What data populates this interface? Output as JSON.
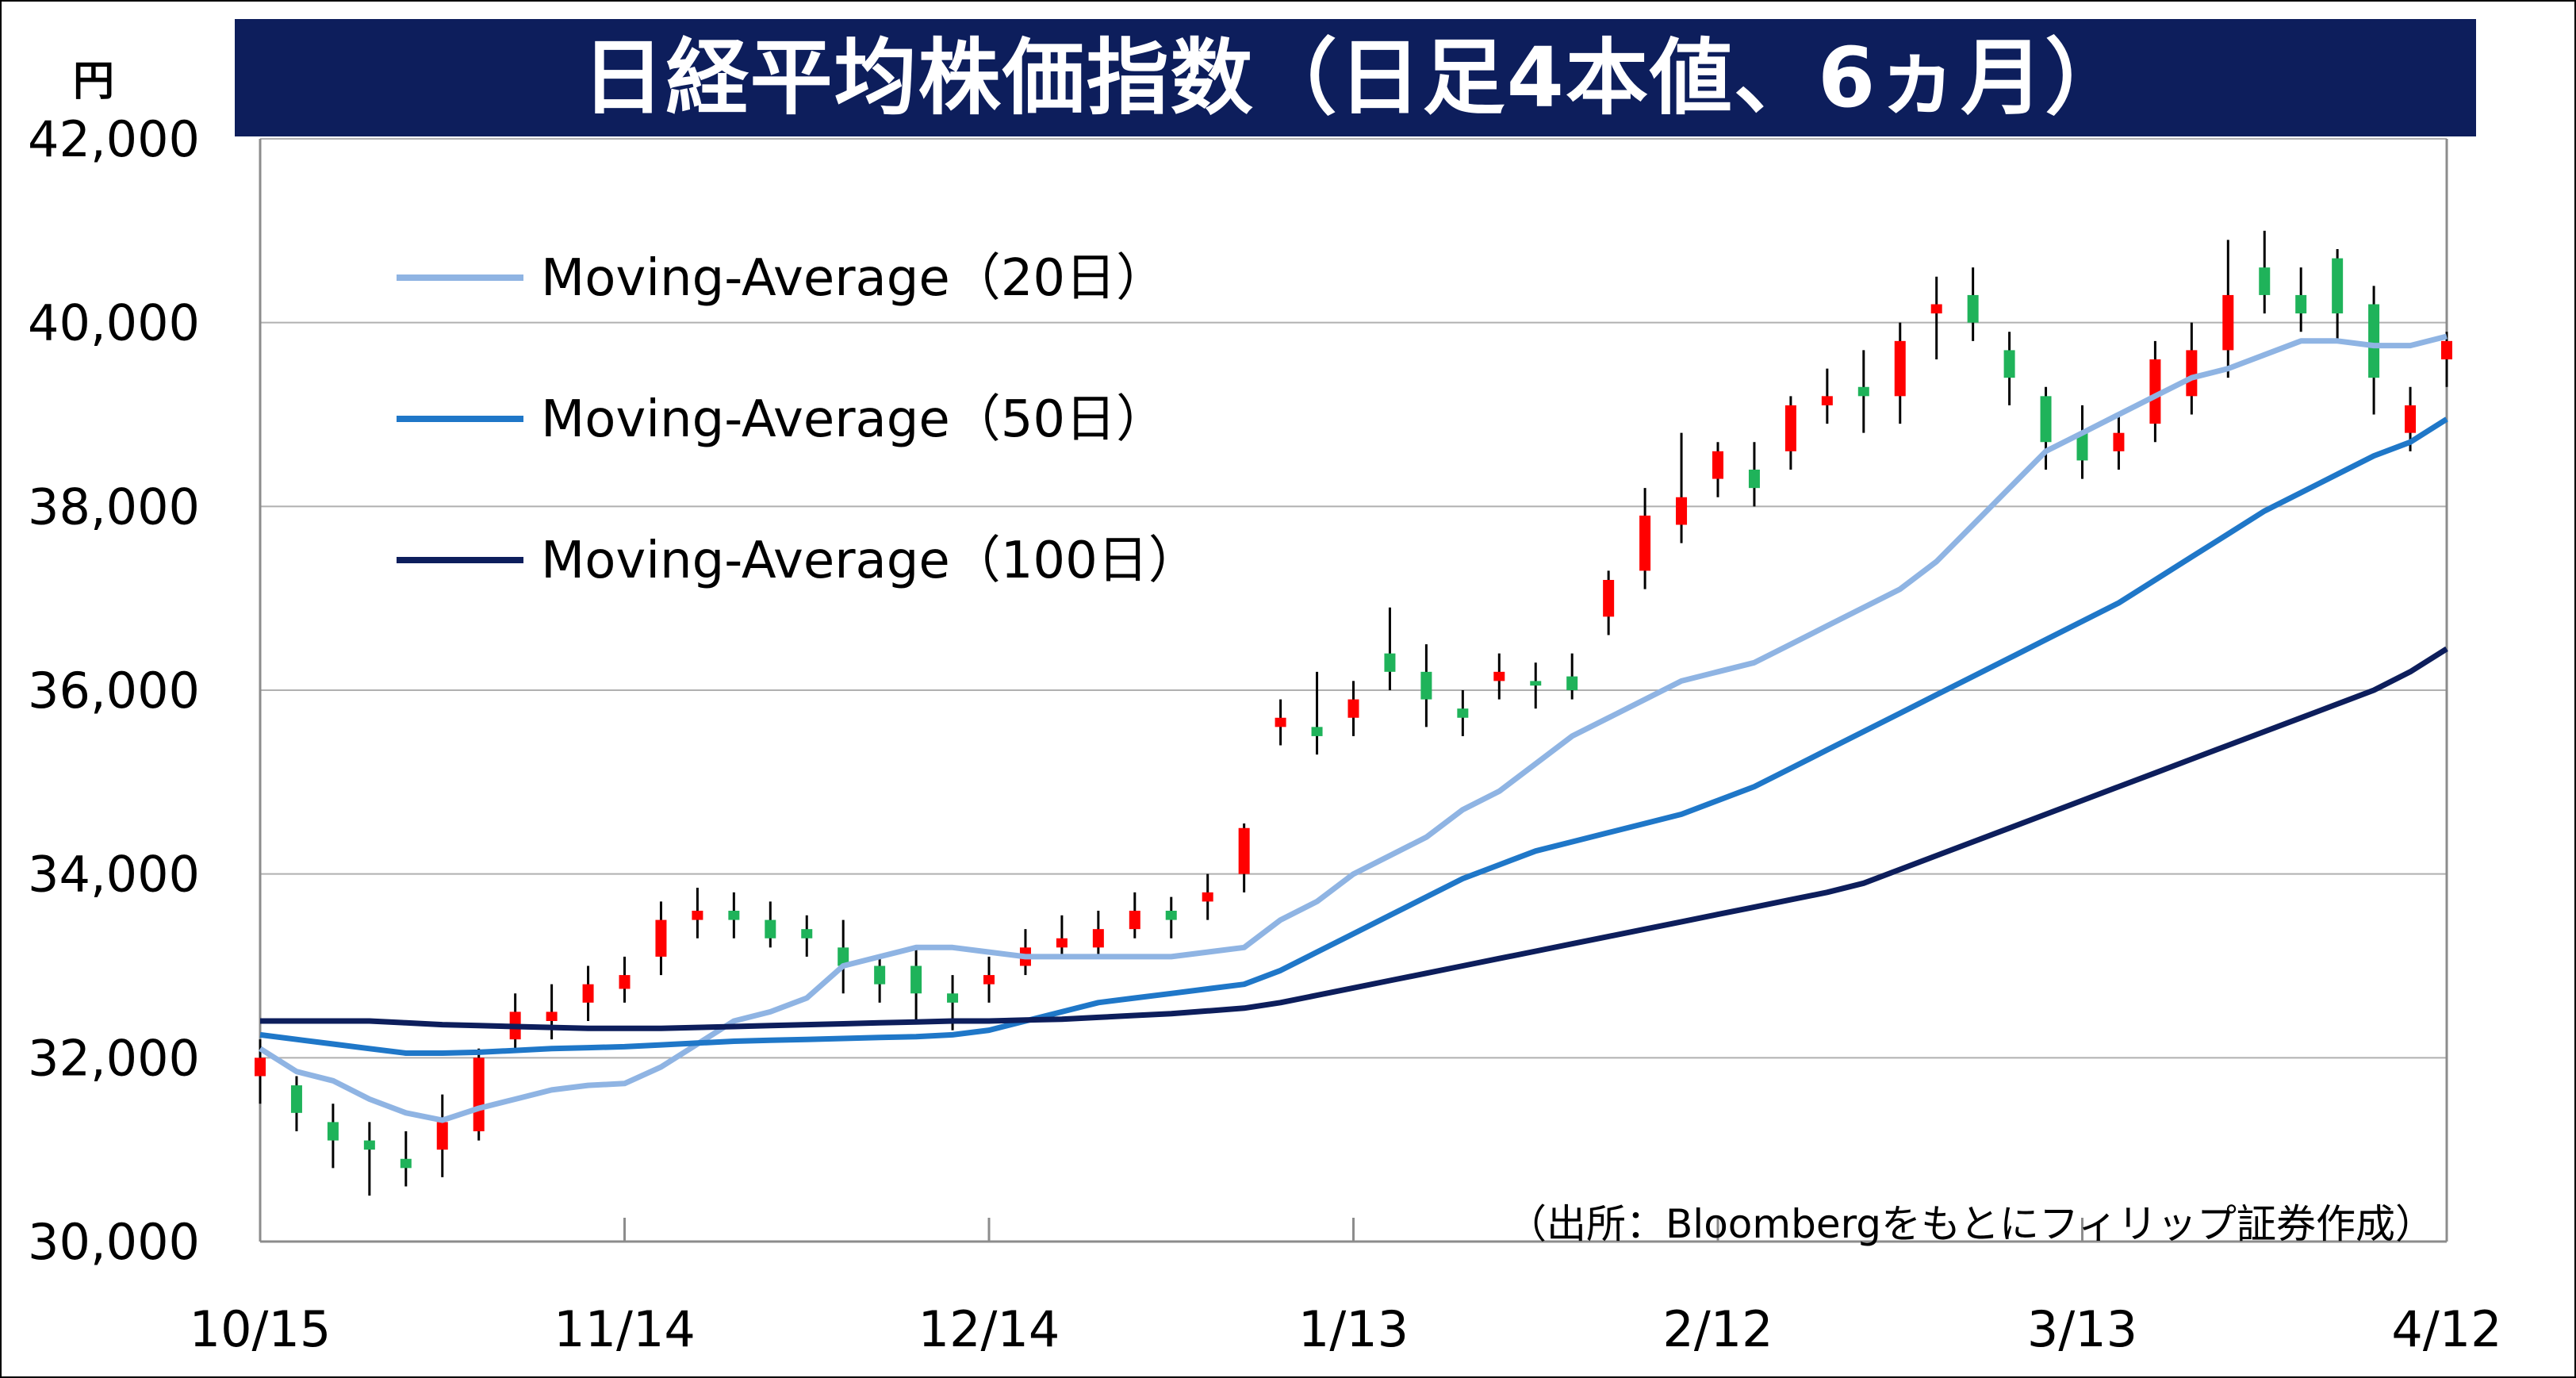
{
  "title": "日経平均株価指数（日足4本値、6ヵ月）",
  "unit": "円",
  "source_note": "（出所：Bloombergをもとにフィリップ証券作成）",
  "colors": {
    "title_bg": "#0d1e5c",
    "up_candle": "#ff0000",
    "down_candle": "#1fb35a",
    "ma20": "#8fb4e3",
    "ma50": "#1f77c8",
    "ma100": "#0d1e5c",
    "grid": "#b0b0b0"
  },
  "chart_data": {
    "type": "line",
    "subtype": "candlestick-with-moving-averages",
    "title": "日経平均株価指数（日足4本値、6ヵ月）",
    "ylabel": "円",
    "ylim": [
      30000,
      42000
    ],
    "yticks": [
      30000,
      32000,
      34000,
      36000,
      38000,
      40000,
      42000
    ],
    "ytick_labels": [
      "30,000",
      "32,000",
      "34,000",
      "36,000",
      "38,000",
      "40,000",
      "42,000"
    ],
    "xlim": [
      0,
      180
    ],
    "x_unit": "days since 10/15",
    "xticks": [
      0,
      30,
      60,
      90,
      120,
      150,
      180
    ],
    "xtick_labels": [
      "10/15",
      "11/14",
      "12/14",
      "1/13",
      "2/12",
      "3/13",
      "4/12"
    ],
    "grid": true,
    "legend_position": "top-left",
    "series": [
      {
        "name": "Moving-Average（20日）",
        "color": "#8fb4e3",
        "x": [
          0,
          3,
          6,
          9,
          12,
          15,
          18,
          21,
          24,
          27,
          30,
          33,
          36,
          39,
          42,
          45,
          48,
          51,
          54,
          57,
          60,
          63,
          66,
          69,
          72,
          75,
          78,
          81,
          84,
          87,
          90,
          93,
          96,
          99,
          102,
          105,
          108,
          111,
          114,
          117,
          120,
          123,
          126,
          129,
          132,
          135,
          138,
          141,
          144,
          147,
          150,
          153,
          156,
          159,
          162,
          165,
          168,
          171,
          174,
          177,
          180
        ],
        "values": [
          32100,
          31850,
          31750,
          31550,
          31400,
          31320,
          31450,
          31550,
          31650,
          31700,
          31720,
          31900,
          32150,
          32400,
          32500,
          32650,
          33000,
          33100,
          33200,
          33200,
          33150,
          33100,
          33100,
          33100,
          33100,
          33100,
          33150,
          33200,
          33500,
          33700,
          34000,
          34200,
          34400,
          34700,
          34900,
          35200,
          35500,
          35700,
          35900,
          36100,
          36200,
          36300,
          36500,
          36700,
          36900,
          37100,
          37400,
          37800,
          38200,
          38600,
          38800,
          39000,
          39200,
          39400,
          39500,
          39650,
          39800,
          39800,
          39750,
          39750,
          39850
        ]
      },
      {
        "name": "Moving-Average（50日）",
        "color": "#1f77c8",
        "x": [
          0,
          3,
          6,
          9,
          12,
          15,
          18,
          21,
          24,
          27,
          30,
          33,
          36,
          39,
          42,
          45,
          48,
          51,
          54,
          57,
          60,
          63,
          66,
          69,
          72,
          75,
          78,
          81,
          84,
          87,
          90,
          93,
          96,
          99,
          102,
          105,
          108,
          111,
          114,
          117,
          120,
          123,
          126,
          129,
          132,
          135,
          138,
          141,
          144,
          147,
          150,
          153,
          156,
          159,
          162,
          165,
          168,
          171,
          174,
          177,
          180
        ],
        "values": [
          32250,
          32200,
          32150,
          32100,
          32050,
          32050,
          32060,
          32080,
          32100,
          32110,
          32120,
          32140,
          32160,
          32180,
          32190,
          32200,
          32210,
          32220,
          32230,
          32250,
          32300,
          32400,
          32500,
          32600,
          32650,
          32700,
          32750,
          32800,
          32950,
          33150,
          33350,
          33550,
          33750,
          33950,
          34100,
          34250,
          34350,
          34450,
          34550,
          34650,
          34800,
          34950,
          35150,
          35350,
          35550,
          35750,
          35950,
          36150,
          36350,
          36550,
          36750,
          36950,
          37200,
          37450,
          37700,
          37950,
          38150,
          38350,
          38550,
          38700,
          38950
        ]
      },
      {
        "name": "Moving-Average（100日）",
        "color": "#0d1e5c",
        "x": [
          0,
          3,
          6,
          9,
          12,
          15,
          18,
          21,
          24,
          27,
          30,
          33,
          36,
          39,
          42,
          45,
          48,
          51,
          54,
          57,
          60,
          63,
          66,
          69,
          72,
          75,
          78,
          81,
          84,
          87,
          90,
          93,
          96,
          99,
          102,
          105,
          108,
          111,
          114,
          117,
          120,
          123,
          126,
          129,
          132,
          135,
          138,
          141,
          144,
          147,
          150,
          153,
          156,
          159,
          162,
          165,
          168,
          171,
          174,
          177,
          180
        ],
        "values": [
          32400,
          32400,
          32400,
          32400,
          32380,
          32360,
          32350,
          32340,
          32330,
          32320,
          32320,
          32320,
          32330,
          32340,
          32350,
          32360,
          32370,
          32380,
          32390,
          32400,
          32400,
          32410,
          32420,
          32440,
          32460,
          32480,
          32510,
          32540,
          32600,
          32680,
          32760,
          32840,
          32920,
          33000,
          33080,
          33160,
          33240,
          33320,
          33400,
          33480,
          33560,
          33640,
          33720,
          33800,
          33900,
          34050,
          34200,
          34350,
          34500,
          34650,
          34800,
          34950,
          35100,
          35250,
          35400,
          35550,
          35700,
          35850,
          36000,
          36200,
          36450
        ]
      }
    ],
    "candles": {
      "x": [
        0,
        3,
        6,
        9,
        12,
        15,
        18,
        21,
        24,
        27,
        30,
        33,
        36,
        39,
        42,
        45,
        48,
        51,
        54,
        57,
        60,
        63,
        66,
        69,
        72,
        75,
        78,
        81,
        84,
        87,
        90,
        93,
        96,
        99,
        102,
        105,
        108,
        111,
        114,
        117,
        120,
        123,
        126,
        129,
        132,
        135,
        138,
        141,
        144,
        147,
        150,
        153,
        156,
        159,
        162,
        165,
        168,
        171,
        174,
        177,
        180
      ],
      "open": [
        31800,
        31700,
        31300,
        31100,
        30900,
        31000,
        31200,
        32200,
        32400,
        32600,
        32750,
        33100,
        33500,
        33600,
        33500,
        33400,
        33200,
        33000,
        33000,
        32700,
        32800,
        33000,
        33200,
        33200,
        33400,
        33600,
        33700,
        34000,
        35600,
        35600,
        35700,
        36400,
        36200,
        35800,
        36100,
        36100,
        36150,
        36800,
        37300,
        37800,
        38300,
        38400,
        38600,
        39100,
        39300,
        39200,
        40100,
        40300,
        39700,
        39200,
        38800,
        38600,
        38900,
        39200,
        39700,
        40600,
        40300,
        40700,
        40200,
        38800,
        39600
      ],
      "close": [
        32000,
        31400,
        31100,
        31000,
        30800,
        31300,
        32000,
        32500,
        32500,
        32800,
        32900,
        33500,
        33600,
        33500,
        33300,
        33300,
        33000,
        32800,
        32700,
        32600,
        32900,
        33200,
        33300,
        33400,
        33600,
        33500,
        33800,
        34500,
        35700,
        35500,
        35900,
        36200,
        35900,
        35700,
        36200,
        36050,
        36000,
        37200,
        37900,
        38100,
        38600,
        38200,
        39100,
        39200,
        39200,
        39800,
        40200,
        40000,
        39400,
        38700,
        38500,
        38800,
        39600,
        39700,
        40300,
        40300,
        40100,
        40100,
        39400,
        39100,
        39800
      ],
      "high": [
        32200,
        31800,
        31500,
        31300,
        31200,
        31600,
        32100,
        32700,
        32800,
        33000,
        33100,
        33700,
        33850,
        33800,
        33700,
        33550,
        33500,
        33100,
        33200,
        32900,
        33100,
        33400,
        33550,
        33600,
        33800,
        33750,
        34000,
        34550,
        35900,
        36200,
        36100,
        36900,
        36500,
        36000,
        36400,
        36300,
        36400,
        37300,
        38200,
        38800,
        38700,
        38700,
        39200,
        39500,
        39700,
        40000,
        40500,
        40600,
        39900,
        39300,
        39100,
        39000,
        39800,
        40000,
        40900,
        41000,
        40600,
        40800,
        40400,
        39300,
        39900
      ],
      "low": [
        31500,
        31200,
        30800,
        30500,
        30600,
        30700,
        31100,
        32100,
        32200,
        32400,
        32600,
        32900,
        33300,
        33300,
        33200,
        33100,
        32700,
        32600,
        32400,
        32300,
        32600,
        32900,
        33100,
        33100,
        33300,
        33300,
        33500,
        33800,
        35400,
        35300,
        35500,
        36000,
        35600,
        35500,
        35900,
        35800,
        35900,
        36600,
        37100,
        37600,
        38100,
        38000,
        38400,
        38900,
        38800,
        38900,
        39600,
        39800,
        39100,
        38400,
        38300,
        38400,
        38700,
        39000,
        39400,
        40100,
        39900,
        39800,
        39000,
        38600,
        39300
      ]
    }
  }
}
